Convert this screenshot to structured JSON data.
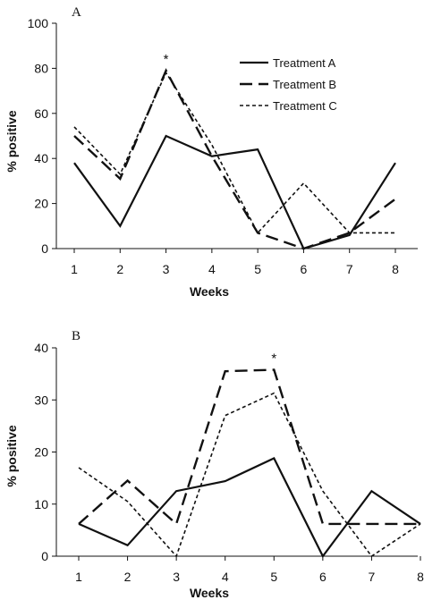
{
  "chart_data": [
    {
      "type": "line",
      "panel_label": "A",
      "xlabel": "Weeks",
      "ylabel": "% positive",
      "categories": [
        "1",
        "2",
        "3",
        "4",
        "5",
        "6",
        "7",
        "8"
      ],
      "yticks": [
        "0",
        "20",
        "40",
        "60",
        "80",
        "100"
      ],
      "ylim": [
        0,
        100
      ],
      "grid": false,
      "legend": "top-right",
      "annotations": [
        {
          "text": "*",
          "x": 3
        }
      ],
      "series": [
        {
          "name": "Treatment A",
          "values": [
            38,
            10,
            50,
            41,
            44,
            0,
            6,
            38
          ],
          "style": "solid"
        },
        {
          "name": "Treatment B",
          "values": [
            50,
            31,
            79,
            41,
            7,
            0,
            7,
            22
          ],
          "style": "long-dash"
        },
        {
          "name": "Treatment C",
          "values": [
            54,
            33,
            78,
            46,
            7,
            29,
            7,
            7
          ],
          "style": "short-dash"
        }
      ]
    },
    {
      "type": "line",
      "panel_label": "B",
      "xlabel": "Weeks",
      "ylabel": "% positive",
      "categories": [
        "1",
        "2",
        "3",
        "4",
        "5",
        "6",
        "7",
        "8"
      ],
      "yticks": [
        "0",
        "10",
        "20",
        "30",
        "40"
      ],
      "ylim": [
        0,
        40
      ],
      "grid": false,
      "legend": "none",
      "annotations": [
        {
          "text": "*",
          "x": 5
        }
      ],
      "series": [
        {
          "name": "",
          "values": [
            6.2,
            2.1,
            12.5,
            14.4,
            18.8,
            0,
            12.5,
            6.2
          ],
          "style": "solid"
        },
        {
          "name": "",
          "values": [
            17,
            10.5,
            0,
            27,
            31.3,
            12.5,
            0,
            6.2
          ],
          "style": "short-dash"
        },
        {
          "name": "",
          "values": [
            6.2,
            14.5,
            6.2,
            35.5,
            35.8,
            6.2,
            6.2,
            6.2
          ],
          "style": "long-dash"
        }
      ]
    }
  ]
}
